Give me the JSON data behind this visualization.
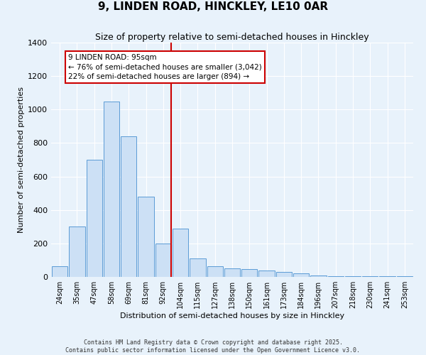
{
  "title": "9, LINDEN ROAD, HINCKLEY, LE10 0AR",
  "subtitle": "Size of property relative to semi-detached houses in Hinckley",
  "xlabel": "Distribution of semi-detached houses by size in Hinckley",
  "ylabel": "Number of semi-detached properties",
  "categories": [
    "24sqm",
    "35sqm",
    "47sqm",
    "58sqm",
    "69sqm",
    "81sqm",
    "92sqm",
    "104sqm",
    "115sqm",
    "127sqm",
    "138sqm",
    "150sqm",
    "161sqm",
    "173sqm",
    "184sqm",
    "196sqm",
    "207sqm",
    "218sqm",
    "230sqm",
    "241sqm",
    "253sqm"
  ],
  "values": [
    65,
    300,
    700,
    1050,
    840,
    480,
    200,
    290,
    110,
    65,
    50,
    45,
    40,
    30,
    20,
    10,
    5,
    5,
    5,
    5,
    5
  ],
  "bar_color": "#cce0f5",
  "bar_edge_color": "#5b9bd5",
  "annotation_text": "9 LINDEN ROAD: 95sqm\n← 76% of semi-detached houses are smaller (3,042)\n22% of semi-detached houses are larger (894) →",
  "vline_bin_idx": 6,
  "ylim": [
    0,
    1400
  ],
  "yticks": [
    0,
    200,
    400,
    600,
    800,
    1000,
    1200,
    1400
  ],
  "footer_line1": "Contains HM Land Registry data © Crown copyright and database right 2025.",
  "footer_line2": "Contains public sector information licensed under the Open Government Licence v3.0.",
  "background_color": "#e8f2fb",
  "plot_background_color": "#e8f2fb",
  "grid_color": "#ffffff",
  "annotation_box_facecolor": "#ffffff",
  "annotation_box_edgecolor": "#cc0000",
  "vline_color": "#cc0000",
  "title_fontsize": 11,
  "subtitle_fontsize": 9,
  "xlabel_fontsize": 8,
  "ylabel_fontsize": 8,
  "xtick_fontsize": 7,
  "ytick_fontsize": 8
}
